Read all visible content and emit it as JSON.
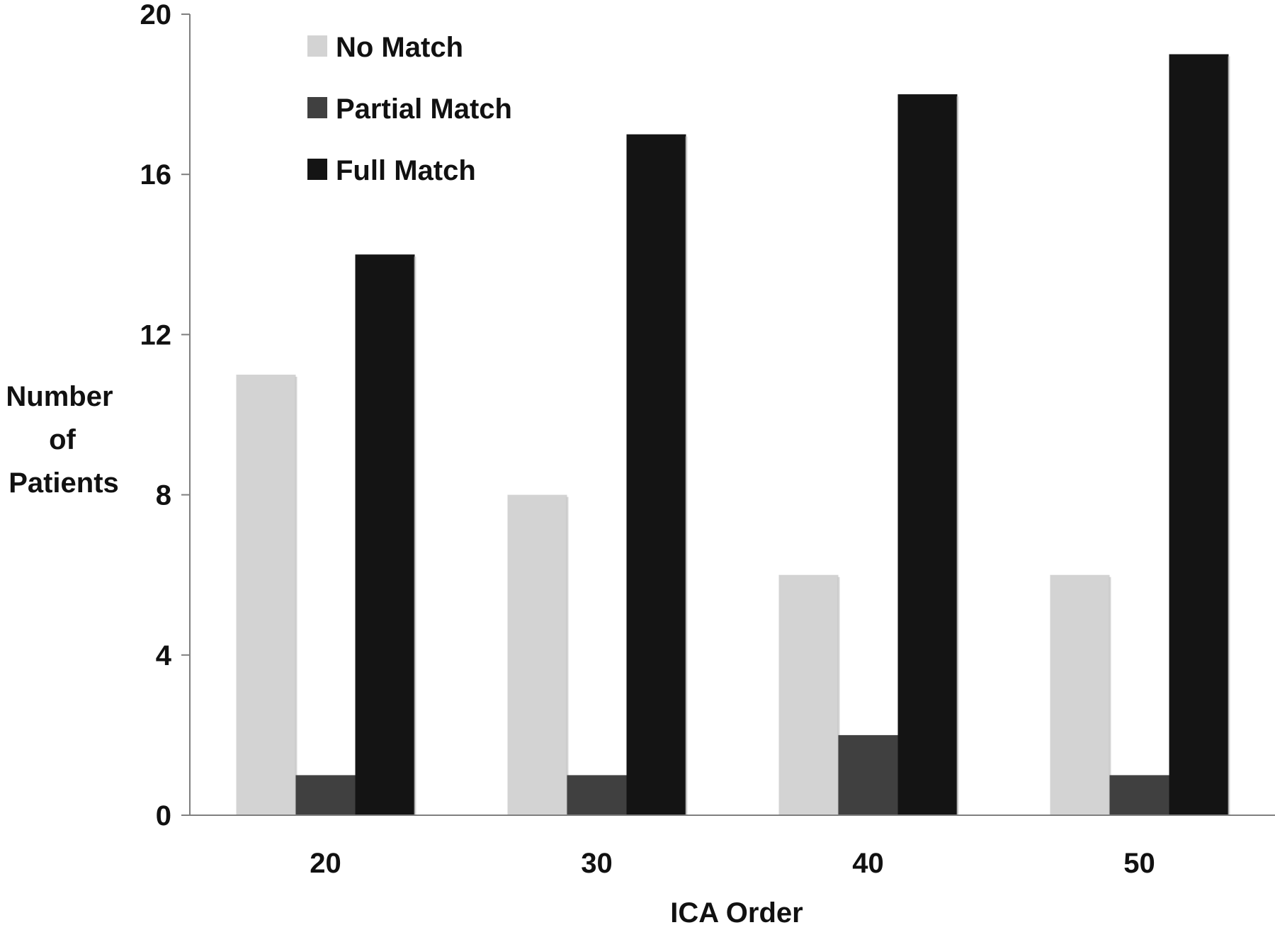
{
  "chart_data": {
    "type": "bar",
    "xlabel": "ICA Order",
    "ylabel": "Number of Patients",
    "ylabel_lines": [
      "Number",
      "of",
      "Patients"
    ],
    "categories": [
      "20",
      "30",
      "40",
      "50"
    ],
    "ylim": [
      0,
      20
    ],
    "yticks": [
      "0",
      "4",
      "8",
      "12",
      "16",
      "20"
    ],
    "grid": false,
    "legend_position": "top-left",
    "series": [
      {
        "name": "No Match",
        "values": [
          11,
          8,
          6,
          6
        ],
        "color": "#d3d3d3"
      },
      {
        "name": "Partial Match",
        "values": [
          1,
          1,
          2,
          1
        ],
        "color": "#404040"
      },
      {
        "name": "Full Match",
        "values": [
          14,
          17,
          18,
          19
        ],
        "color": "#141414"
      }
    ]
  }
}
